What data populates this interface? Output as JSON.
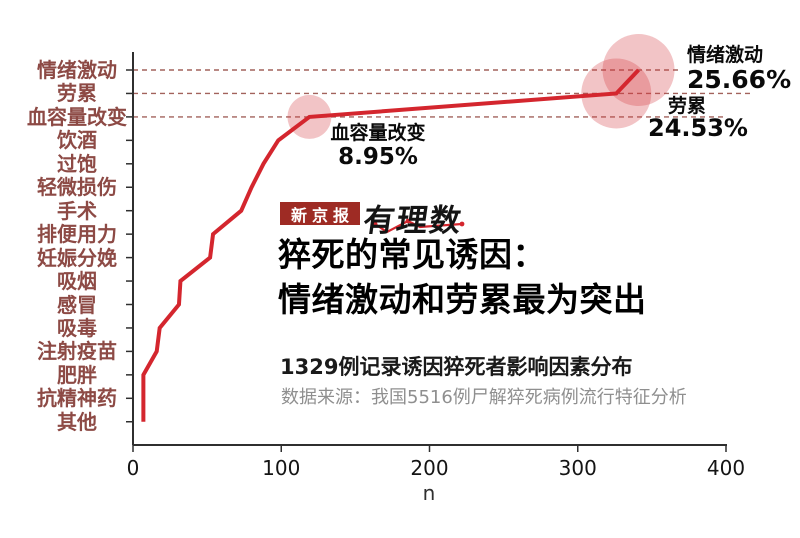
{
  "chart_data": {
    "type": "line",
    "title": "猝死的常见诱因：情绪激动和劳累最为突出",
    "subtitle": "1329例记录诱因猝死者影响因素分布",
    "source": "数据来源：我国5516例尸解猝死病例流行特征分析",
    "xlabel": "n",
    "xlim": [
      0,
      400
    ],
    "xticks": [
      "0",
      "100",
      "200",
      "300",
      "400"
    ],
    "total_cases": 1329,
    "categories": [
      "情绪激动",
      "劳累",
      "血容量改变",
      "饮酒",
      "过饱",
      "轻微损伤",
      "手术",
      "排便用力",
      "妊娠分娩",
      "吸烟",
      "感冒",
      "吸毒",
      "注射疫苗",
      "肥胖",
      "抗精神药",
      "其他"
    ],
    "values": [
      341,
      326,
      119,
      98,
      88,
      80,
      73,
      54,
      52,
      32,
      31,
      18,
      16,
      7,
      7,
      7
    ],
    "callouts": {
      "emotion": {
        "label": "情绪激动",
        "percent": "25.66%"
      },
      "fatigue": {
        "label": "劳累",
        "percent": "24.53%"
      },
      "blood_volume": {
        "label": "血容量改变",
        "percent": "8.95%"
      }
    },
    "dashed_guide_categories": [
      "情绪激动",
      "劳累",
      "血容量改变"
    ],
    "highlight_bubble_categories": [
      "情绪激动",
      "劳累",
      "血容量改变"
    ],
    "legend": "none",
    "grid": "off",
    "colors": {
      "line": "#d4262e",
      "bubble": "rgba(212,60,66,0.30)",
      "dashed": "#a2625c",
      "category_label": "#8d4a45",
      "axis": "#2f2f2f",
      "masthead_bg": "#9e2b24"
    }
  },
  "header": {
    "title_line1": "猝死的常见诱因：",
    "title_line2": "情绪激动和劳累最为突出",
    "subtitle": "1329例记录诱因猝死者影响因素分布",
    "source": "数据来源：我国5516例尸解猝死病例流行特征分析"
  },
  "branding": {
    "masthead": "新京报",
    "brand": "有理数"
  }
}
